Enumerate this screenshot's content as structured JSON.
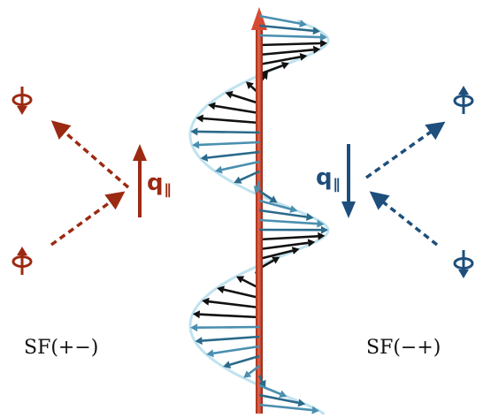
{
  "colors": {
    "red": "#9c2a12",
    "red_light": "#e05a42",
    "blue": "#1e4f7c",
    "helix_arrow": "#2a6a8a",
    "helix_arrow_light": "#4b8fb0",
    "helix_edge": "#bfe2ef",
    "black": "#111111"
  },
  "left": {
    "channel_label": "SF(+−)",
    "q_symbol": "q",
    "q_subscript": "∥",
    "q_direction": "up",
    "top_spin": "down",
    "bottom_spin": "up"
  },
  "right": {
    "channel_label": "SF(−+)",
    "q_symbol": "q",
    "q_subscript": "∥",
    "q_direction": "down",
    "top_spin": "up",
    "bottom_spin": "down"
  },
  "center": {
    "structure": "spin-spiral helix",
    "axis_icon": "red-vertical-arrow"
  }
}
